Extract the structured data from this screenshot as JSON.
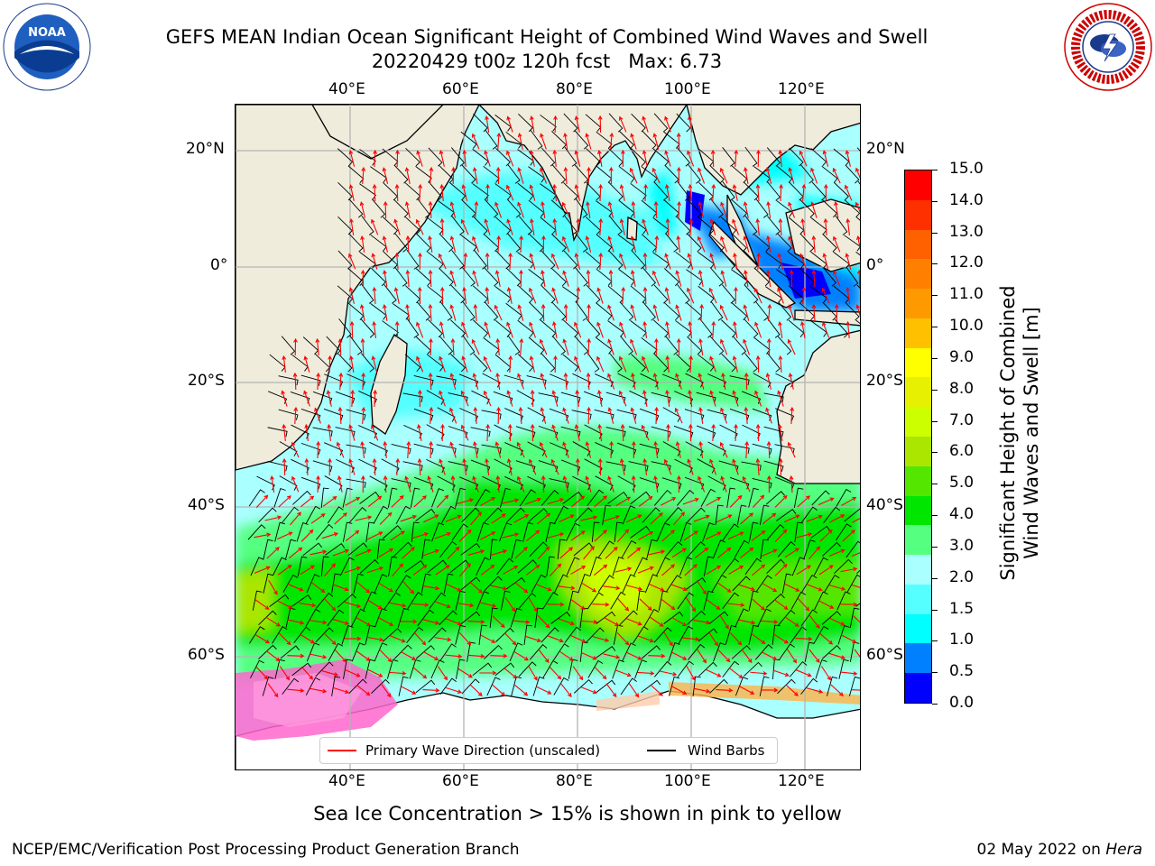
{
  "header": {
    "title_line1": "GEFS MEAN Indian Ocean Significant Height of Combined Wind Waves and Swell",
    "title_line2": "20220429 t00z 120h fcst   Max: 6.73"
  },
  "logos": {
    "noaa_text": "NOAA",
    "noaa_ring_text": "NATIONAL OCEANIC AND ATMOSPHERIC ADMINISTRATION · U.S. DEPARTMENT OF COMMERCE",
    "nws_ring_text": "NATIONAL WEATHER SERVICE"
  },
  "map": {
    "lon_labels": [
      "40°E",
      "60°E",
      "80°E",
      "100°E",
      "120°E"
    ],
    "lat_labels": [
      "20°N",
      "0°",
      "20°S",
      "40°S",
      "60°S"
    ],
    "legend": {
      "wave_direction": "Primary Wave Direction (unscaled)",
      "wind_barbs": "Wind Barbs"
    },
    "colors": {
      "land": "#efecdc",
      "ocean_base": "#aaffff",
      "wave_arrow": "#ff0000",
      "wind_barb": "#000000",
      "grid": "#b4b4b4"
    }
  },
  "colorbar": {
    "label_line1": "Significant Height of Combined",
    "label_line2": "Wind Waves and Swell [m]",
    "ticks": [
      "15.0",
      "14.0",
      "13.0",
      "12.0",
      "11.0",
      "10.0",
      "9.0",
      "8.0",
      "7.0",
      "6.0",
      "5.0",
      "4.0",
      "3.0",
      "2.0",
      "1.5",
      "1.0",
      "0.5",
      "0.0"
    ],
    "bands": [
      "#0000ff",
      "#0080ff",
      "#00ffff",
      "#55ffff",
      "#aaffff",
      "#55ff80",
      "#00e600",
      "#55e600",
      "#aae600",
      "#ccff00",
      "#e6f000",
      "#ffff00",
      "#ffc000",
      "#ff9900",
      "#ff8000",
      "#ff6000",
      "#ff3000",
      "#ff0000"
    ]
  },
  "notes": {
    "sea_ice": "Sea Ice Concentration > 15% is shown in pink to yellow"
  },
  "footer": {
    "left": "NCEP/EMC/Verification Post Processing Product Generation Branch",
    "right_prefix": "02 May 2022 on ",
    "right_host": "Hera"
  }
}
